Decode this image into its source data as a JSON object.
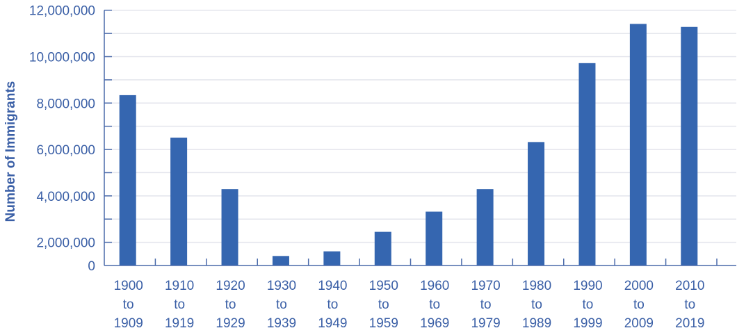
{
  "chart_data": {
    "type": "bar",
    "title": "",
    "xlabel": "",
    "ylabel": "Number of Immigrants",
    "categories": [
      [
        "1900",
        "to",
        "1909"
      ],
      [
        "1910",
        "to",
        "1919"
      ],
      [
        "1920",
        "to",
        "1929"
      ],
      [
        "1930",
        "to",
        "1939"
      ],
      [
        "1940",
        "to",
        "1949"
      ],
      [
        "1950",
        "to",
        "1959"
      ],
      [
        "1960",
        "to",
        "1969"
      ],
      [
        "1970",
        "to",
        "1979"
      ],
      [
        "1980",
        "to",
        "1989"
      ],
      [
        "1990",
        "to",
        "1999"
      ],
      [
        "2000",
        "to",
        "2009"
      ],
      [
        "2010",
        "to",
        "2019"
      ]
    ],
    "values": [
      8340000,
      6510000,
      4290000,
      1410000,
      1610000,
      2450000,
      3320000,
      4290000,
      6320000,
      9720000,
      11410000,
      11280000
    ],
    "ylim": [
      1000000,
      12000000
    ],
    "yticks": [
      {
        "value": 0,
        "label": "0"
      },
      {
        "value": 2000000,
        "label": "2,000,000"
      },
      {
        "value": 4000000,
        "label": "4,000,000"
      },
      {
        "value": 6000000,
        "label": "6,000,000"
      },
      {
        "value": 8000000,
        "label": "8,000,000"
      },
      {
        "value": 10000000,
        "label": "10,000,000"
      },
      {
        "value": 12000000,
        "label": "12,000,000"
      }
    ],
    "minor_grid_step": 1000000,
    "grid": true,
    "legend": "none",
    "colors": {
      "bar": "#3566b0",
      "text": "#3a5fa6",
      "axis": "#4a6aaa",
      "grid": "#e3e4ec"
    }
  }
}
